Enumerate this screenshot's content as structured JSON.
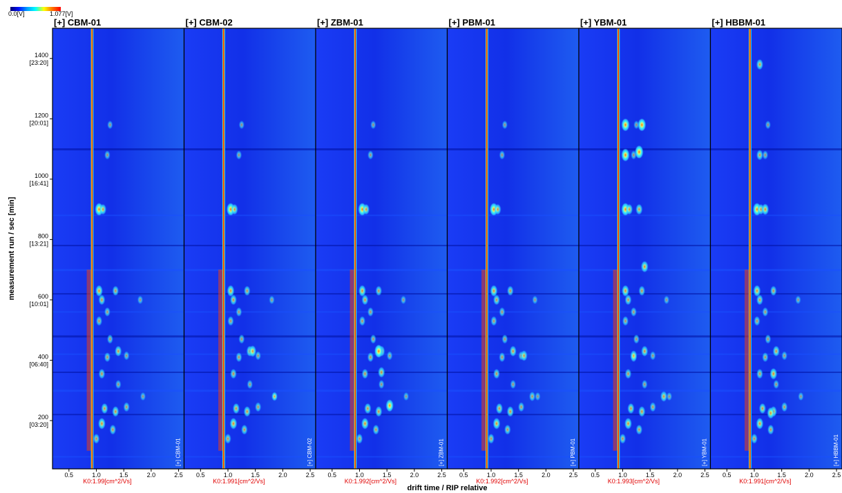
{
  "scale": {
    "min_label": "0.0[V]",
    "max_label": "1.077[V]"
  },
  "chart_data": {
    "type": "heatmap",
    "xlabel": "drift time / RIP relative",
    "ylabel": "measurement run / sec [min]",
    "xlim": [
      0.2,
      2.6
    ],
    "ylim": [
      40,
      1500
    ],
    "x_ticks": [
      "0.5",
      "1.0",
      "1.5",
      "2.0",
      "2.5"
    ],
    "y_ticks": [
      {
        "value": 200,
        "label": "200",
        "time": "[03:20]"
      },
      {
        "value": 400,
        "label": "400",
        "time": "[06:40]"
      },
      {
        "value": 600,
        "label": "600",
        "time": "[10:01]"
      },
      {
        "value": 800,
        "label": "800",
        "time": "[13:21]"
      },
      {
        "value": 1000,
        "label": "1000",
        "time": "[16:41]"
      },
      {
        "value": 1200,
        "label": "1200",
        "time": "[20:01]"
      },
      {
        "value": 1400,
        "label": "1400",
        "time": "[23:20]"
      }
    ],
    "panels": [
      {
        "title": "[+] CBM-01",
        "k0": "K0:1.99[cm^2/Vs]",
        "vlabel": "[+] CBM-01"
      },
      {
        "title": "[+] CBM-02",
        "k0": "K0:1.991[cm^2/Vs]",
        "vlabel": "[+] CBM-02"
      },
      {
        "title": "[+] ZBM-01",
        "k0": "K0:1.992[cm^2/Vs]",
        "vlabel": "[+] ZBM-01"
      },
      {
        "title": "[+] PBM-01",
        "k0": "K0:1.992[cm^2/Vs]",
        "vlabel": "[+] PBM-01"
      },
      {
        "title": "[+] YBM-01",
        "k0": "K0:1.993[cm^2/Vs]",
        "vlabel": "[+] YBM-01"
      },
      {
        "title": "[+] HBBM-01",
        "k0": "K0:1.991[cm^2/Vs]",
        "vlabel": "[+] HBBM-01"
      }
    ],
    "rip_position": [
      0.9,
      0.95
    ],
    "spots": [
      {
        "x": 1.05,
        "y": 900,
        "i": 0.9
      },
      {
        "x": 1.12,
        "y": 900,
        "i": 0.6
      },
      {
        "x": 1.05,
        "y": 630,
        "i": 0.7
      },
      {
        "x": 1.35,
        "y": 630,
        "i": 0.5
      },
      {
        "x": 1.1,
        "y": 600,
        "i": 0.55
      },
      {
        "x": 1.2,
        "y": 560,
        "i": 0.4
      },
      {
        "x": 1.05,
        "y": 530,
        "i": 0.45
      },
      {
        "x": 1.25,
        "y": 470,
        "i": 0.4
      },
      {
        "x": 1.4,
        "y": 430,
        "i": 0.6
      },
      {
        "x": 1.2,
        "y": 410,
        "i": 0.45
      },
      {
        "x": 1.55,
        "y": 415,
        "i": 0.35
      },
      {
        "x": 1.1,
        "y": 355,
        "i": 0.5
      },
      {
        "x": 1.4,
        "y": 320,
        "i": 0.35
      },
      {
        "x": 1.15,
        "y": 240,
        "i": 0.6
      },
      {
        "x": 1.35,
        "y": 230,
        "i": 0.6
      },
      {
        "x": 1.55,
        "y": 245,
        "i": 0.45
      },
      {
        "x": 1.1,
        "y": 190,
        "i": 0.7
      },
      {
        "x": 1.3,
        "y": 170,
        "i": 0.5
      },
      {
        "x": 1.0,
        "y": 140,
        "i": 0.5
      },
      {
        "x": 1.2,
        "y": 1080,
        "i": 0.35
      },
      {
        "x": 1.25,
        "y": 1180,
        "i": 0.3
      },
      {
        "x": 1.8,
        "y": 600,
        "i": 0.3
      },
      {
        "x": 1.85,
        "y": 280,
        "i": 0.3
      }
    ],
    "panel_spots": {
      "1": [
        {
          "x": 1.45,
          "y": 430,
          "i": 0.7
        },
        {
          "x": 1.85,
          "y": 280,
          "i": 0.4
        }
      ],
      "2": [
        {
          "x": 1.35,
          "y": 430,
          "i": 0.95
        },
        {
          "x": 1.55,
          "y": 250,
          "i": 0.8
        },
        {
          "x": 1.4,
          "y": 360,
          "i": 0.6
        }
      ],
      "3": [
        {
          "x": 1.6,
          "y": 415,
          "i": 0.6
        },
        {
          "x": 1.75,
          "y": 280,
          "i": 0.45
        }
      ],
      "4": [
        {
          "x": 1.05,
          "y": 1180,
          "i": 0.9
        },
        {
          "x": 1.35,
          "y": 1180,
          "i": 0.9
        },
        {
          "x": 1.05,
          "y": 1080,
          "i": 0.9
        },
        {
          "x": 1.3,
          "y": 1090,
          "i": 0.95
        },
        {
          "x": 1.3,
          "y": 900,
          "i": 0.6
        },
        {
          "x": 1.4,
          "y": 710,
          "i": 0.7
        },
        {
          "x": 1.75,
          "y": 280,
          "i": 0.6
        },
        {
          "x": 1.2,
          "y": 415,
          "i": 0.6
        }
      ],
      "5": [
        {
          "x": 1.1,
          "y": 1380,
          "i": 0.6
        },
        {
          "x": 1.1,
          "y": 1080,
          "i": 0.55
        },
        {
          "x": 1.2,
          "y": 900,
          "i": 0.7
        },
        {
          "x": 1.35,
          "y": 355,
          "i": 0.7
        },
        {
          "x": 1.3,
          "y": 225,
          "i": 0.7
        }
      ]
    }
  }
}
